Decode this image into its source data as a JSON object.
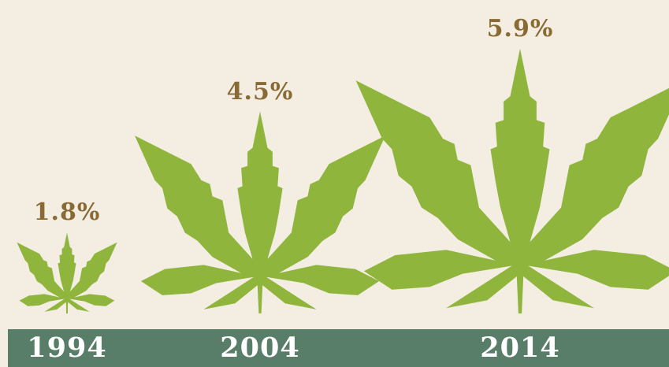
{
  "colors": {
    "background": "#f3ede2",
    "leaf": "#8fb53d",
    "value_label": "#8a6a34",
    "year_band": "#587d68",
    "year_text": "#ffffff"
  },
  "chart_data": {
    "type": "bar",
    "title": "",
    "xlabel": "",
    "ylabel": "",
    "mark_shape": "cannabis-leaf",
    "categories": [
      "1994",
      "2004",
      "2014"
    ],
    "values": [
      1.8,
      4.5,
      5.9
    ],
    "value_labels": [
      "1.8%",
      "4.5%",
      "5.9%"
    ],
    "ylim": [
      0,
      6.5
    ],
    "grid": false,
    "legend": "none"
  }
}
